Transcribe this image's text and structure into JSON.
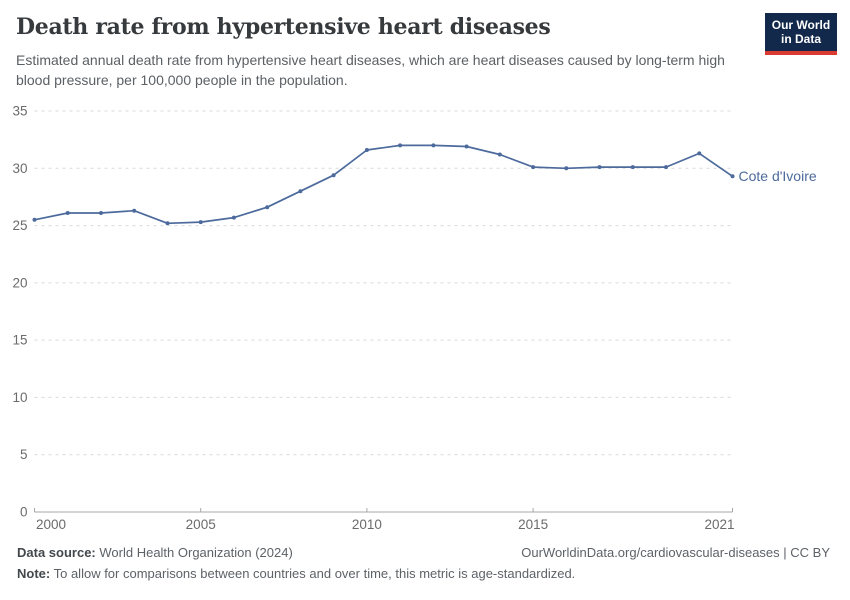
{
  "header": {
    "title": "Death rate from hypertensive heart diseases",
    "subtitle": "Estimated annual death rate from hypertensive heart diseases, which are heart diseases caused by long-term high blood pressure, per 100,000 people in the population.",
    "logo": {
      "line1": "Our World",
      "line2": "in Data"
    }
  },
  "chart_data": {
    "type": "line",
    "title": "Death rate from hypertensive heart diseases",
    "x": [
      2000,
      2001,
      2002,
      2003,
      2004,
      2005,
      2006,
      2007,
      2008,
      2009,
      2010,
      2011,
      2012,
      2013,
      2014,
      2015,
      2016,
      2017,
      2018,
      2019,
      2020,
      2021
    ],
    "series": [
      {
        "name": "Cote d'Ivoire",
        "color": "#4C6A9C",
        "values": [
          25.5,
          26.1,
          26.1,
          26.3,
          25.2,
          25.3,
          25.7,
          26.6,
          28.0,
          29.4,
          31.6,
          32.0,
          32.0,
          31.9,
          31.2,
          30.1,
          30.0,
          30.1,
          30.1,
          30.1,
          31.3,
          29.3
        ]
      }
    ],
    "xlim": [
      2000,
      2021
    ],
    "ylim": [
      0,
      35
    ],
    "xticks": [
      2000,
      2005,
      2010,
      2015,
      2021
    ],
    "yticks": [
      0,
      5,
      10,
      15,
      20,
      25,
      30,
      35
    ],
    "grid": "horizontal-dashed",
    "marker": "dot",
    "legend_position": "end-of-line-label",
    "xlabel": "",
    "ylabel": ""
  },
  "colors": {
    "line": "#4C6A9C",
    "grid": "#d9d9d9",
    "axis": "#a7a7a7",
    "tick_label": "#6b6b6b",
    "logo_bg": "#12294b",
    "logo_accent": "#d93a32"
  },
  "footer": {
    "data_source_label": "Data source:",
    "data_source_value": "World Health Organization (2024)",
    "attribution": "OurWorldinData.org/cardiovascular-diseases | CC BY",
    "note_label": "Note:",
    "note_value": "To allow for comparisons between countries and over time, this metric is age-standardized."
  }
}
